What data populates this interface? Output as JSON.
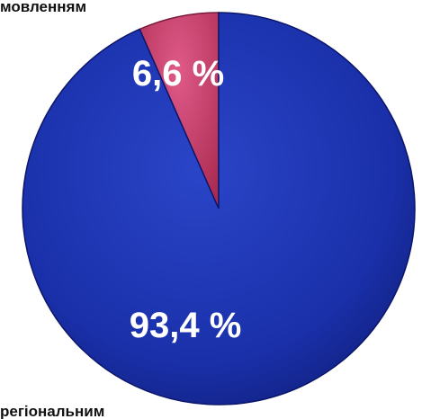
{
  "captions": {
    "top": "мовленням",
    "bottom": "регіональним"
  },
  "chart_data": {
    "type": "pie",
    "series": [
      {
        "values": [
          6.6,
          93.4
        ],
        "labels": [
          "6,6 %",
          "93,4 %"
        ],
        "colors": [
          "#c23a64",
          "#1a2fa8"
        ]
      }
    ],
    "start": "12 o'clock",
    "direction": "counter-clockwise from small slice"
  }
}
